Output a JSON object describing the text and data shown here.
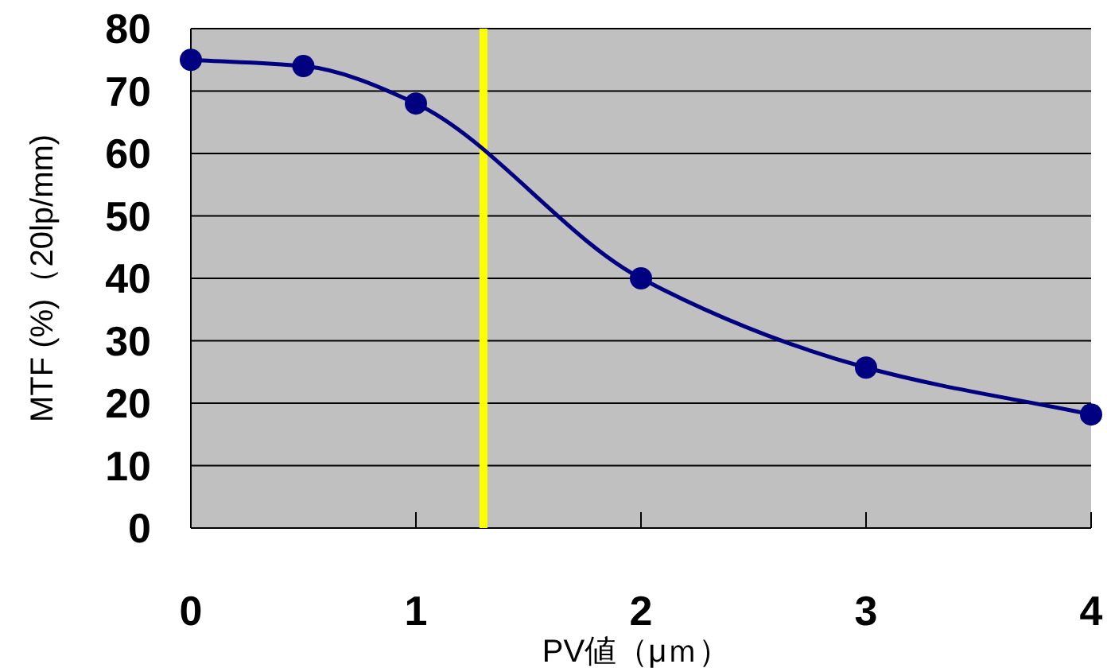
{
  "chart_data": {
    "type": "line",
    "xlabel": "PV値（μｍ）",
    "ylabel": "MTF (%)（20lp/mm)",
    "x": [
      0,
      0.5,
      1,
      2,
      3,
      4
    ],
    "series": [
      {
        "color": "#000080",
        "values": [
          75,
          74,
          68,
          40,
          25.7,
          18.2
        ]
      }
    ],
    "xlim": [
      0,
      4
    ],
    "xticks": [
      0,
      1,
      2,
      3,
      4
    ],
    "ylim": [
      0,
      80
    ],
    "yticks": [
      0,
      10,
      20,
      30,
      40,
      50,
      60,
      70,
      80
    ],
    "grid": "y",
    "marker": "circle",
    "line_style": "solid",
    "ref_lines": [
      {
        "axis": "x",
        "value": 1.3,
        "color": "#ffff00"
      }
    ]
  }
}
